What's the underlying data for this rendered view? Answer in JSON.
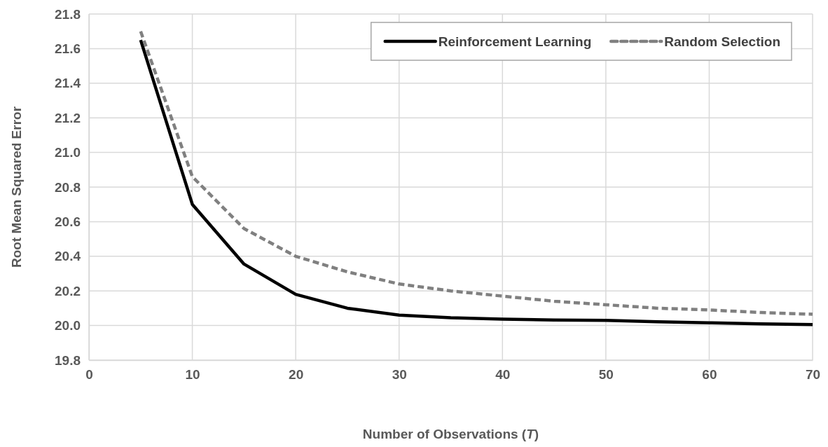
{
  "chart_data": {
    "type": "line",
    "xlabel": "Number of Observations (T)",
    "ylabel": "Root Mean Squared Error",
    "x": [
      5,
      10,
      15,
      20,
      25,
      30,
      35,
      40,
      45,
      50,
      55,
      60,
      65,
      70
    ],
    "series": [
      {
        "name": "Reinforcement Learning",
        "color": "#000000",
        "line_style": "solid",
        "values": [
          21.65,
          20.7,
          20.355,
          20.18,
          20.1,
          20.06,
          20.045,
          20.037,
          20.032,
          20.03,
          20.022,
          20.016,
          20.01,
          20.005
        ]
      },
      {
        "name": "Random Selection",
        "color": "#808080",
        "line_style": "dashed",
        "values": [
          21.7,
          20.86,
          20.56,
          20.4,
          20.31,
          20.24,
          20.2,
          20.17,
          20.14,
          20.12,
          20.1,
          20.09,
          20.075,
          20.065
        ]
      }
    ],
    "xlim": [
      0,
      70
    ],
    "xticks": [
      0,
      10,
      20,
      30,
      40,
      50,
      60,
      70
    ],
    "ylim": [
      19.8,
      21.8
    ],
    "yticks": [
      {
        "value": 19.8,
        "label": "19.8"
      },
      {
        "value": 20,
        "label": "20.0"
      },
      {
        "value": 20.2,
        "label": "20.2"
      },
      {
        "value": 20.4,
        "label": "20.4"
      },
      {
        "value": 20.6,
        "label": "20.6"
      },
      {
        "value": 20.8,
        "label": "20.8"
      },
      {
        "value": 21,
        "label": "21.0"
      },
      {
        "value": 21.2,
        "label": "21.2"
      },
      {
        "value": 21.4,
        "label": "21.4"
      },
      {
        "value": 21.6,
        "label": "21.6"
      },
      {
        "value": 21.8,
        "label": "21.8"
      }
    ],
    "grid": true,
    "legend": "top right",
    "marker": "none"
  }
}
